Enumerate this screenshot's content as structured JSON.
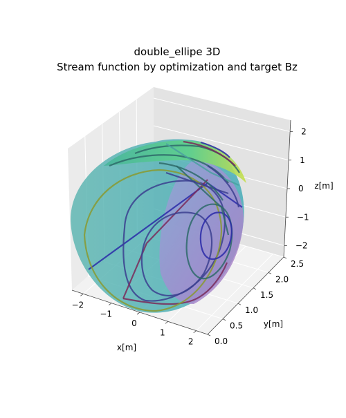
{
  "chart_data": {
    "type": "surface3d",
    "title": "double_ellipe 3D",
    "subtitle": "Stream function by optimization and target Bz",
    "xlabel": "x[m]",
    "ylabel": "y[m]",
    "zlabel": "z[m]",
    "x_ticks": [
      "−2",
      "−1",
      "0",
      "1",
      "2"
    ],
    "y_ticks": [
      "0.0",
      "0.5",
      "1.0",
      "1.5",
      "2.0",
      "2.5"
    ],
    "z_ticks": [
      "−2",
      "−1",
      "0",
      "1",
      "2"
    ],
    "xlim": [
      -2.4,
      2.4
    ],
    "ylim": [
      0,
      2.5
    ],
    "zlim": [
      -2.4,
      2.4
    ],
    "grid": true,
    "surface": {
      "shape": "double ellipse",
      "colormap": "viridis",
      "colors": [
        "#4fb8b0",
        "#7fb3d8",
        "#9a7fc8",
        "#6bd88a",
        "#c8e04a"
      ]
    },
    "contour_colors": [
      "#2a2aa8",
      "#3b3f8f",
      "#7a2a5a",
      "#2e6a6a",
      "#8a9a30",
      "#4aa0a0"
    ]
  }
}
